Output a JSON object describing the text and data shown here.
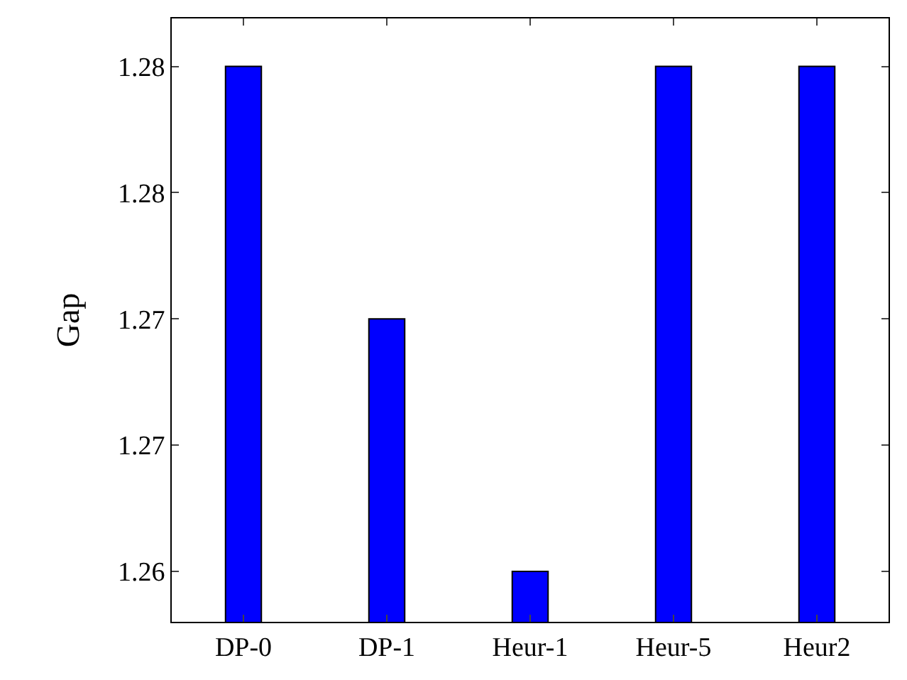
{
  "chart_data": {
    "type": "bar",
    "ylabel": "Gap",
    "categories": [
      "DP-0",
      "DP-1",
      "Heur-1",
      "Heur-5",
      "Heur2"
    ],
    "values": [
      1.28,
      1.27,
      1.26,
      1.28,
      1.28
    ],
    "color": "#0000ff",
    "ylim": [
      1.258,
      1.2819
    ],
    "yticks": [
      1.26,
      {
        "value": 1.265,
        "label": "1.27"
      },
      1.27,
      {
        "value": 1.275,
        "label": "1.28"
      },
      1.28
    ],
    "legend": false
  }
}
